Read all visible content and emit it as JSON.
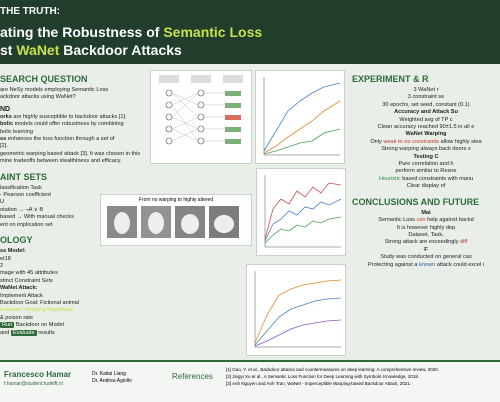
{
  "header": {
    "title_lines": [
      [
        {
          "t": "THE TRUTH:"
        }
      ],
      [
        {
          "t": "ating the Robustness of "
        },
        {
          "t": "Semantic Loss",
          "hl": true
        }
      ],
      [
        {
          "t": "st "
        },
        {
          "t": "WaNet",
          "hl": true
        },
        {
          "t": " Backdoor Attacks"
        }
      ]
    ]
  },
  "left": [
    {
      "h": "SEARCH QUESTION"
    },
    {
      "l": [
        {
          "t": "are NeSy models employing Semantic Loss"
        }
      ]
    },
    {
      "l": [
        {
          "t": "ackdoor attacks using WaNet?"
        }
      ]
    },
    {
      "s": "ND"
    },
    {
      "l": [
        {
          "t": "orks",
          "b": true
        },
        {
          "t": " are highly susceptible to backdoor attacks [1]."
        }
      ]
    },
    {
      "l": [
        {
          "t": "bolic",
          "b": true
        },
        {
          "t": " models could offer robustness by combining"
        }
      ]
    },
    {
      "l": [
        {
          "t": "bolic learning"
        }
      ]
    },
    {
      "l": [
        {
          "t": "ss",
          "b": true
        },
        {
          "t": " enhances the loss function through a set of"
        }
      ]
    },
    {
      "l": [
        {
          "t": "[2]."
        }
      ]
    },
    {
      "l": [
        {
          "t": "geometric warping based attack [3]. It was chosen in this"
        }
      ]
    },
    {
      "l": [
        {
          "t": "mine tradeoffs between stealthiness and efficacy."
        }
      ]
    },
    {
      "h": "AINT SETS"
    },
    {
      "l": [
        {
          "t": "lassification Task"
        }
      ]
    },
    {
      "l": [
        {
          "t": " - Pearson coefficient"
        }
      ]
    },
    {
      "l": [
        {
          "t": "U"
        }
      ]
    },
    {
      "l": [
        {
          "t": "otation → ¬A ∨ B"
        }
      ]
    },
    {
      "l": [
        {
          "t": "based → With manual checks"
        }
      ]
    },
    {
      "l": [
        {
          "t": "ent on implication set"
        }
      ]
    },
    {
      "h": "OLOGY"
    },
    {
      "l": [
        {
          "t": "ss Model:",
          "b": true
        }
      ]
    },
    {
      "l": [
        {
          "t": "et18"
        }
      ]
    },
    {
      "l": [
        {
          "t": "2"
        }
      ]
    },
    {
      "l": [
        {
          "t": "mage with 45 attributes"
        }
      ]
    },
    {
      "l": [
        {
          "t": "stinct Constraint Sets"
        }
      ]
    },
    {
      "l": [
        {
          "t": "WaNet Attack:",
          "b": true
        }
      ]
    },
    {
      "l": [
        {
          "t": "Implement Attack"
        }
      ]
    },
    {
      "l": [
        {
          "t": "Backdoor Goal: Fictional animal"
        }
      ]
    },
    {
      "l": [
        {
          "t": "Evaluate: ",
          "hl": true
        },
        {
          "t": "Warping Magnitude",
          "hl": true
        }
      ]
    },
    {
      "l": [
        {
          "t": "& poison rate"
        }
      ]
    },
    {
      "l": [
        {
          "t": "Run",
          "box": true
        },
        {
          "t": " Backdoor on Model"
        }
      ]
    },
    {
      "l": [
        {
          "t": "and "
        },
        {
          "t": "Evaluate",
          "box": true
        },
        {
          "t": " results"
        }
      ]
    }
  ],
  "right": [
    {
      "h": "EXPERIMENT & R"
    },
    {
      "l": [
        {
          "t": "3 WaNet r"
        }
      ]
    },
    {
      "l": [
        {
          "t": "3 constraint se"
        }
      ]
    },
    {
      "l": [
        {
          "t": "30 epochs, set seed, constant (0.1)"
        }
      ]
    },
    {
      "l": [
        {
          "t": "Accuracy and Attack Su",
          "b": true
        }
      ]
    },
    {
      "l": [
        {
          "t": "Weighted avg of TP c"
        }
      ]
    },
    {
      "l": [
        {
          "t": "Clean accuracy reached 90±1.5 in all e"
        }
      ]
    },
    {
      "l": [
        {
          "t": "WaNet Warping",
          "b": true
        }
      ]
    },
    {
      "l": [
        {
          "t": "Only "
        },
        {
          "t": "weak to no constraints",
          "c": "red"
        },
        {
          "t": " allow highly stea"
        }
      ]
    },
    {
      "l": [
        {
          "t": "Strong warping always back doors s"
        }
      ]
    },
    {
      "l": [
        {
          "t": "Testing C",
          "b": true
        }
      ]
    },
    {
      "l": [
        {
          "t": "Pure correlation and h"
        }
      ]
    },
    {
      "l": [
        {
          "t": "perform similar to Resne"
        }
      ]
    },
    {
      "l": [
        {
          "t": "Heuristic",
          "c": "green"
        },
        {
          "t": " based constraints with manu"
        }
      ]
    },
    {
      "l": [
        {
          "t": "Clear display of"
        }
      ]
    },
    {
      "h": "CONCLUSIONS AND FUTURE"
    },
    {
      "l": [
        {
          "t": "Mai",
          "b": true
        }
      ]
    },
    {
      "l": [
        {
          "t": "Semantic Loss "
        },
        {
          "t": "can",
          "c": "red"
        },
        {
          "t": " help against backd"
        }
      ]
    },
    {
      "l": [
        {
          "t": "It is however highly dep"
        }
      ]
    },
    {
      "l": [
        {
          "t": "Dataset, Task,"
        }
      ]
    },
    {
      "l": [
        {
          "t": "Strong attack are exceedingly "
        },
        {
          "t": "diff",
          "c": "red"
        }
      ]
    },
    {
      "l": [
        {
          "t": "F",
          "b": true
        }
      ]
    },
    {
      "l": [
        {
          "t": "Study was conducted on general cas"
        }
      ]
    },
    {
      "l": [
        {
          "t": "Protecting against a "
        },
        {
          "t": "known",
          "c": "blue"
        },
        {
          "t": " attack could excel i"
        }
      ]
    }
  ],
  "figure": {
    "caption": "From no warping to highly altered"
  },
  "footer": {
    "author": "Francesco Hamar",
    "email": "f.hamar@student.tudelft.nl",
    "supervisors": [
      "Dr. Kaitai Liang",
      "Dr. Andrea Agiollo"
    ],
    "references_title": "References",
    "references": [
      "[1] Gao, Y. et al., Backdoor attacks and countermeasures on deep learning: A comprehensive review, 2020.",
      "[2] Jingyi Xu et al., A Semantic Loss Function for Deep Learning with Symbolic Knowledge, 2018.",
      "[3] Anh Nguyen and Anh Tran, WaNet - Imperceptible Warping-based Backdoor Attack, 2021."
    ]
  }
}
